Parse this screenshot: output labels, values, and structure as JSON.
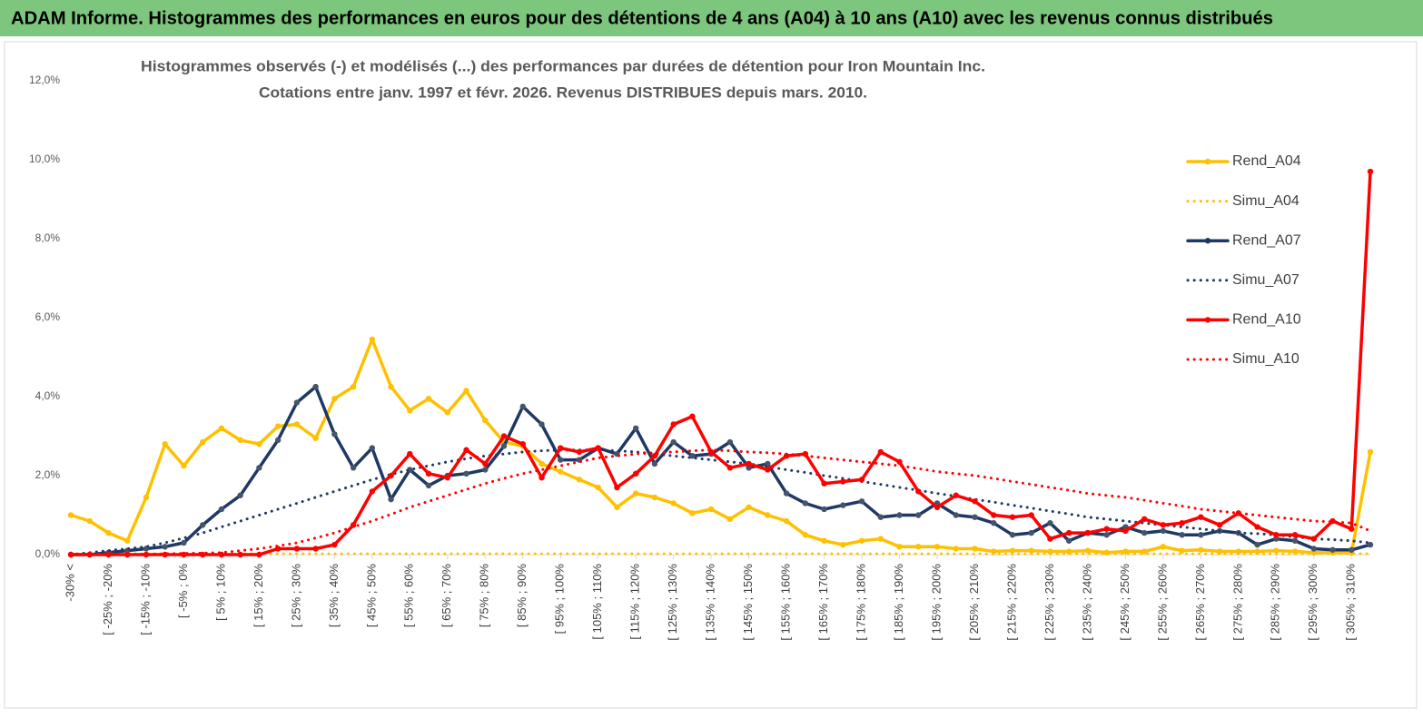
{
  "header": {
    "title": "ADAM Informe. Histogrammes des performances en euros pour des détentions de 4 ans (A04) à 10 ans (A10) avec les revenus connus distribués"
  },
  "chart_data": {
    "type": "line",
    "title": "Histogrammes observés (-) et modélisés (...) des performances par durées de détention pour Iron Mountain Inc.",
    "subtitle": "Cotations entre janv. 1997 et févr.  2026. Revenus DISTRIBUES depuis mars. 2010.",
    "categories": [
      "-30% <",
      null,
      "[ -25% ; -20%",
      null,
      "[ -15% ; -10%",
      null,
      "[ -5% ; 0%",
      null,
      "[ 5% ; 10%",
      null,
      "[ 15% ; 20%",
      null,
      "[ 25% ; 30%",
      null,
      "[ 35% ; 40%",
      null,
      "[ 45% ; 50%",
      null,
      "[ 55% ; 60%",
      null,
      "[ 65% ; 70%",
      null,
      "[ 75% ; 80%",
      null,
      "[ 85% ; 90%",
      null,
      "[ 95% ; 100%",
      null,
      "[ 105% ; 110%",
      null,
      "[ 115% ; 120%",
      null,
      "[ 125% ; 130%",
      null,
      "[ 135% ; 140%",
      null,
      "[ 145% ; 150%",
      null,
      "[ 155% ; 160%",
      null,
      "[ 165% ; 170%",
      null,
      "[ 175% ; 180%",
      null,
      "[ 185% ; 190%",
      null,
      "[ 195% ; 200%",
      null,
      "[ 205% ; 210%",
      null,
      "[ 215% ; 220%",
      null,
      "[ 225% ; 230%",
      null,
      "[ 235% ; 240%",
      null,
      "[ 245% ; 250%",
      null,
      "[ 255% ; 260%",
      null,
      "[ 265% ; 270%",
      null,
      "[ 275% ; 280%",
      null,
      "[ 285% ; 290%",
      null,
      "[ 295% ; 300%",
      null,
      "[ 305% ; 310%",
      null
    ],
    "ylim": [
      0,
      12
    ],
    "yticks": [
      {
        "value": 0,
        "label": "0,0%"
      },
      {
        "value": 2,
        "label": "2,0%"
      },
      {
        "value": 4,
        "label": "4,0%"
      },
      {
        "value": 6,
        "label": "6,0%"
      },
      {
        "value": 8,
        "label": "8,0%"
      },
      {
        "value": 10,
        "label": "10,0%"
      },
      {
        "value": 12,
        "label": "12,0%"
      }
    ],
    "grid": false,
    "legend": "right",
    "series": [
      {
        "name": "Rend_A04",
        "color": "#FFC000",
        "style": "solid",
        "markers": true,
        "values": [
          1.0,
          0.85,
          0.55,
          0.35,
          1.45,
          2.8,
          2.25,
          2.85,
          3.2,
          2.9,
          2.8,
          3.25,
          3.3,
          2.95,
          3.95,
          4.25,
          5.45,
          4.25,
          3.65,
          3.95,
          3.6,
          4.15,
          3.4,
          2.85,
          2.75,
          2.3,
          2.1,
          1.9,
          1.7,
          1.2,
          1.55,
          1.45,
          1.3,
          1.05,
          1.15,
          0.9,
          1.2,
          1.0,
          0.85,
          0.5,
          0.35,
          0.25,
          0.35,
          0.4,
          0.2,
          0.2,
          0.2,
          0.15,
          0.15,
          0.08,
          0.1,
          0.1,
          0.08,
          0.08,
          0.1,
          0.05,
          0.08,
          0.08,
          0.2,
          0.1,
          0.12,
          0.08,
          0.08,
          0.08,
          0.1,
          0.08,
          0.05,
          0.05,
          0.05,
          2.6
        ]
      },
      {
        "name": "Simu_A04",
        "color": "#FFC000",
        "style": "dotted",
        "markers": false,
        "values": [
          0.02,
          0.02,
          0.02,
          0.02,
          0.02,
          0.02,
          0.02,
          0.02,
          0.02,
          0.02,
          0.02,
          0.02,
          0.02,
          0.02,
          0.02,
          0.02,
          0.02,
          0.02,
          0.02,
          0.02,
          0.02,
          0.02,
          0.02,
          0.02,
          0.02,
          0.02,
          0.02,
          0.02,
          0.02,
          0.02,
          0.02,
          0.02,
          0.02,
          0.02,
          0.02,
          0.02,
          0.02,
          0.02,
          0.02,
          0.02,
          0.02,
          0.02,
          0.02,
          0.02,
          0.02,
          0.02,
          0.02,
          0.02,
          0.02,
          0.02,
          0.02,
          0.02,
          0.02,
          0.02,
          0.02,
          0.02,
          0.02,
          0.02,
          0.02,
          0.02,
          0.02,
          0.02,
          0.02,
          0.02,
          0.02,
          0.02,
          0.02,
          0.02,
          0.02,
          0.02
        ]
      },
      {
        "name": "Rend_A07",
        "color": "#1F3864",
        "style": "solid",
        "markers": true,
        "values": [
          0,
          0,
          0.05,
          0.1,
          0.15,
          0.2,
          0.3,
          0.75,
          1.15,
          1.5,
          2.2,
          2.9,
          3.85,
          4.25,
          3.05,
          2.2,
          2.7,
          1.4,
          2.15,
          1.75,
          2.0,
          2.05,
          2.15,
          2.75,
          3.75,
          3.3,
          2.4,
          2.4,
          2.7,
          2.55,
          3.2,
          2.3,
          2.85,
          2.5,
          2.55,
          2.85,
          2.2,
          2.3,
          1.55,
          1.3,
          1.15,
          1.25,
          1.35,
          0.95,
          1.0,
          1.0,
          1.3,
          1.0,
          0.95,
          0.8,
          0.5,
          0.55,
          0.8,
          0.35,
          0.55,
          0.5,
          0.7,
          0.55,
          0.6,
          0.5,
          0.5,
          0.6,
          0.55,
          0.25,
          0.4,
          0.35,
          0.15,
          0.12,
          0.12,
          0.25
        ]
      },
      {
        "name": "Simu_A07",
        "color": "#1F3864",
        "style": "dotted",
        "markers": false,
        "values": [
          0,
          0.05,
          0.1,
          0.15,
          0.2,
          0.3,
          0.42,
          0.55,
          0.7,
          0.85,
          1.0,
          1.15,
          1.3,
          1.45,
          1.6,
          1.75,
          1.9,
          2.03,
          2.15,
          2.25,
          2.35,
          2.43,
          2.5,
          2.55,
          2.6,
          2.63,
          2.65,
          2.65,
          2.65,
          2.63,
          2.6,
          2.55,
          2.5,
          2.45,
          2.4,
          2.35,
          2.3,
          2.23,
          2.15,
          2.08,
          2.0,
          1.93,
          1.85,
          1.78,
          1.7,
          1.63,
          1.55,
          1.48,
          1.4,
          1.33,
          1.25,
          1.18,
          1.1,
          1.03,
          0.95,
          0.9,
          0.85,
          0.8,
          0.75,
          0.7,
          0.65,
          0.6,
          0.55,
          0.53,
          0.5,
          0.45,
          0.4,
          0.38,
          0.35,
          0.3
        ]
      },
      {
        "name": "Rend_A10",
        "color": "#FF0000",
        "style": "solid",
        "markers": true,
        "values": [
          0,
          0,
          0,
          0,
          0,
          0,
          0,
          0,
          0,
          0,
          0,
          0.15,
          0.15,
          0.15,
          0.25,
          0.75,
          1.6,
          2.0,
          2.55,
          2.05,
          1.95,
          2.65,
          2.3,
          3.0,
          2.8,
          1.95,
          2.7,
          2.6,
          2.7,
          1.7,
          2.05,
          2.5,
          3.3,
          3.5,
          2.6,
          2.2,
          2.3,
          2.15,
          2.5,
          2.55,
          1.8,
          1.85,
          1.9,
          2.6,
          2.35,
          1.6,
          1.2,
          1.5,
          1.35,
          1.0,
          0.95,
          1.0,
          0.4,
          0.55,
          0.55,
          0.65,
          0.6,
          0.9,
          0.75,
          0.8,
          0.95,
          0.75,
          1.05,
          0.7,
          0.5,
          0.5,
          0.4,
          0.85,
          0.65,
          9.7
        ]
      },
      {
        "name": "Simu_A10",
        "color": "#FF0000",
        "style": "dotted",
        "markers": false,
        "values": [
          0,
          0,
          0,
          0,
          0.01,
          0.02,
          0.03,
          0.04,
          0.05,
          0.1,
          0.15,
          0.22,
          0.3,
          0.42,
          0.55,
          0.7,
          0.85,
          1.02,
          1.2,
          1.35,
          1.5,
          1.65,
          1.8,
          1.93,
          2.05,
          2.15,
          2.25,
          2.35,
          2.45,
          2.5,
          2.55,
          2.58,
          2.6,
          2.63,
          2.65,
          2.63,
          2.6,
          2.58,
          2.55,
          2.5,
          2.45,
          2.4,
          2.35,
          2.3,
          2.25,
          2.18,
          2.1,
          2.05,
          2.0,
          1.93,
          1.85,
          1.78,
          1.7,
          1.63,
          1.55,
          1.5,
          1.45,
          1.38,
          1.3,
          1.23,
          1.15,
          1.1,
          1.05,
          1.0,
          0.95,
          0.9,
          0.85,
          0.83,
          0.8,
          0.6
        ]
      }
    ]
  }
}
